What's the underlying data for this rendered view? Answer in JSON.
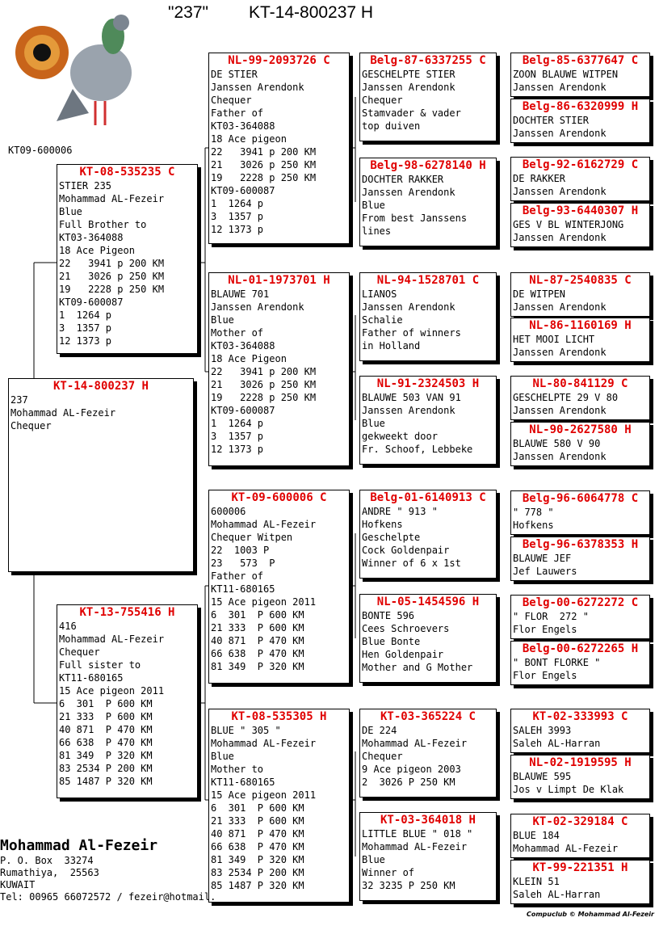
{
  "header": {
    "title": "\"237\"",
    "ring": "KT-14-800237 H"
  },
  "photo_caption": "KT09-600006",
  "pedigree": [
    {
      "ring": "KT-14-800237 H",
      "lines": [
        "237",
        "Mohammad AL-Fezeir",
        "Chequer"
      ]
    },
    {
      "ring": "KT-08-535235 C",
      "lines": [
        "STIER 235",
        "Mohammad AL-Fezeir",
        "Blue",
        "Full Brother to",
        "KT03-364088",
        "18 Ace Pigeon",
        "22   3941 p 200 KM",
        "21   3026 p 250 KM",
        "19   2228 p 250 KM",
        "KT09-600087",
        "1  1264 p",
        "3  1357 p",
        "12 1373 p"
      ]
    },
    {
      "ring": "KT-13-755416 H",
      "lines": [
        "416",
        "Mohammad AL-Fezeir",
        "Chequer",
        "Full sister to",
        "KT11-680165",
        "15 Ace pigeon 2011",
        "6  301  P 600 KM",
        "21 333  P 600 KM",
        "40 871  P 470 KM",
        "66 638  P 470 KM",
        "81 349  P 320 KM",
        "83 2534 P 200 KM",
        "85 1487 P 320 KM"
      ]
    },
    {
      "ring": "NL-99-2093726 C",
      "lines": [
        "DE STIER",
        "Janssen Arendonk",
        "Chequer",
        "Father of",
        "KT03-364088",
        "18 Ace pigeon",
        "22   3941 p 200 KM",
        "21   3026 p 250 KM",
        "19   2228 p 250 KM",
        "KT09-600087",
        "1  1264 p",
        "3  1357 p",
        "12 1373 p"
      ]
    },
    {
      "ring": "NL-01-1973701 H",
      "lines": [
        "BLAUWE 701",
        "Janssen Arendonk",
        "Blue",
        "Mother of",
        "KT03-364088",
        "18 Ace Pigeon",
        "22   3941 p 200 KM",
        "21   3026 p 250 KM",
        "19   2228 p 250 KM",
        "KT09-600087",
        "1  1264 p",
        "3  1357 p",
        "12 1373 p"
      ]
    },
    {
      "ring": "KT-09-600006 C",
      "lines": [
        "600006",
        "Mohammad AL-Fezeir",
        "Chequer Witpen",
        "22  1003 P",
        "23   573  P",
        "Father of",
        "KT11-680165",
        "15 Ace pigeon 2011",
        "6  301  P 600 KM",
        "21 333  P 600 KM",
        "40 871  P 470 KM",
        "66 638  P 470 KM",
        "81 349  P 320 KM"
      ]
    },
    {
      "ring": "KT-08-535305 H",
      "lines": [
        "BLUE \" 305 \"",
        "Mohammad AL-Fezeir",
        "Blue",
        "Mother to",
        "KT11-680165",
        "15 Ace pigeon 2011",
        "6  301  P 600 KM",
        "21 333  P 600 KM",
        "40 871  P 470 KM",
        "66 638  P 470 KM",
        "81 349  P 320 KM",
        "83 2534 P 200 KM",
        "85 1487 P 320 KM"
      ]
    },
    {
      "ring": "Belg-87-6337255 C",
      "lines": [
        "GESCHELPTE STIER",
        "Janssen Arendonk",
        "Chequer",
        "Stamvader & vader",
        "top duiven"
      ]
    },
    {
      "ring": "Belg-98-6278140 H",
      "lines": [
        "DOCHTER RAKKER",
        "Janssen Arendonk",
        "Blue",
        "From best Janssens",
        "lines"
      ]
    },
    {
      "ring": "NL-94-1528701 C",
      "lines": [
        "LIANOS",
        "Janssen Arendonk",
        "Schalie",
        "Father of winners",
        "in Holland"
      ]
    },
    {
      "ring": "NL-91-2324503 H",
      "lines": [
        "BLAUWE 503 VAN 91",
        "Janssen Arendonk",
        "Blue",
        "gekweekt door",
        "Fr. Schoof, Lebbeke"
      ]
    },
    {
      "ring": "Belg-01-6140913 C",
      "lines": [
        "ANDRE \" 913 \"",
        "Hofkens",
        "Geschelpte",
        "Cock Goldenpair",
        "Winner of 6 x 1st"
      ]
    },
    {
      "ring": "NL-05-1454596 H",
      "lines": [
        "BONTE 596",
        "Cees Schroevers",
        "Blue Bonte",
        "Hen Goldenpair",
        "Mother and G Mother"
      ]
    },
    {
      "ring": "KT-03-365224 C",
      "lines": [
        "DE 224",
        "Mohammad AL-Fezeir",
        "Chequer",
        "9 Ace pigeon 2003",
        "2  3026 P 250 KM"
      ]
    },
    {
      "ring": "KT-03-364018 H",
      "lines": [
        "LITTLE BLUE \" 018 \"",
        "Mohammad AL-Fezeir",
        "Blue",
        "Winner of",
        "32 3235 P 250 KM"
      ]
    },
    {
      "ring": "Belg-85-6377647 C",
      "lines": [
        "ZOON BLAUWE WITPEN",
        "Janssen Arendonk"
      ]
    },
    {
      "ring": "Belg-86-6320999 H",
      "lines": [
        "DOCHTER STIER",
        "Janssen Arendonk"
      ]
    },
    {
      "ring": "Belg-92-6162729 C",
      "lines": [
        "DE RAKKER",
        "Janssen Arendonk"
      ]
    },
    {
      "ring": "Belg-93-6440307 H",
      "lines": [
        "GES V BL WINTERJONG",
        "Janssen Arendonk"
      ]
    },
    {
      "ring": "NL-87-2540835 C",
      "lines": [
        "DE WITPEN",
        "Janssen Arendonk"
      ]
    },
    {
      "ring": "NL-86-1160169 H",
      "lines": [
        "HET MOOI LICHT",
        "Janssen Arendonk"
      ]
    },
    {
      "ring": "NL-80-841129 C",
      "lines": [
        "GESCHELPTE 29 V 80",
        "Janssen Arendonk"
      ]
    },
    {
      "ring": "NL-90-2627580 H",
      "lines": [
        "BLAUWE 580 V 90",
        "Janssen Arendonk"
      ]
    },
    {
      "ring": "Belg-96-6064778 C",
      "lines": [
        "\" 778 \"",
        "Hofkens"
      ]
    },
    {
      "ring": "Belg-96-6378353 H",
      "lines": [
        "BLAUWE JEF",
        "Jef Lauwers"
      ]
    },
    {
      "ring": "Belg-00-6272272 C",
      "lines": [
        "\" FLOR  272 \"",
        "Flor Engels"
      ]
    },
    {
      "ring": "Belg-00-6272265 H",
      "lines": [
        "\" BONT FLORKE \"",
        "Flor Engels"
      ]
    },
    {
      "ring": "KT-02-333993 C",
      "lines": [
        "SALEH 3993",
        "Saleh AL-Harran"
      ]
    },
    {
      "ring": "NL-02-1919595 H",
      "lines": [
        "BLAUWE 595",
        "Jos v Limpt De Klak"
      ]
    },
    {
      "ring": "KT-02-329184 C",
      "lines": [
        "BLUE 184",
        "Mohammad AL-Fezeir"
      ]
    },
    {
      "ring": "KT-99-221351 H",
      "lines": [
        "KLEIN 51",
        "Saleh AL-Harran"
      ]
    }
  ],
  "owner": {
    "name": "Mohammad Al-Fezeir",
    "lines": [
      "P. O. Box  33274",
      "Rumathiya,  25563",
      "KUWAIT",
      "Tel: 00965 66072572 / fezeir@hotmail."
    ]
  },
  "footer": "Compuclub © Mohammad Al-Fezeir"
}
